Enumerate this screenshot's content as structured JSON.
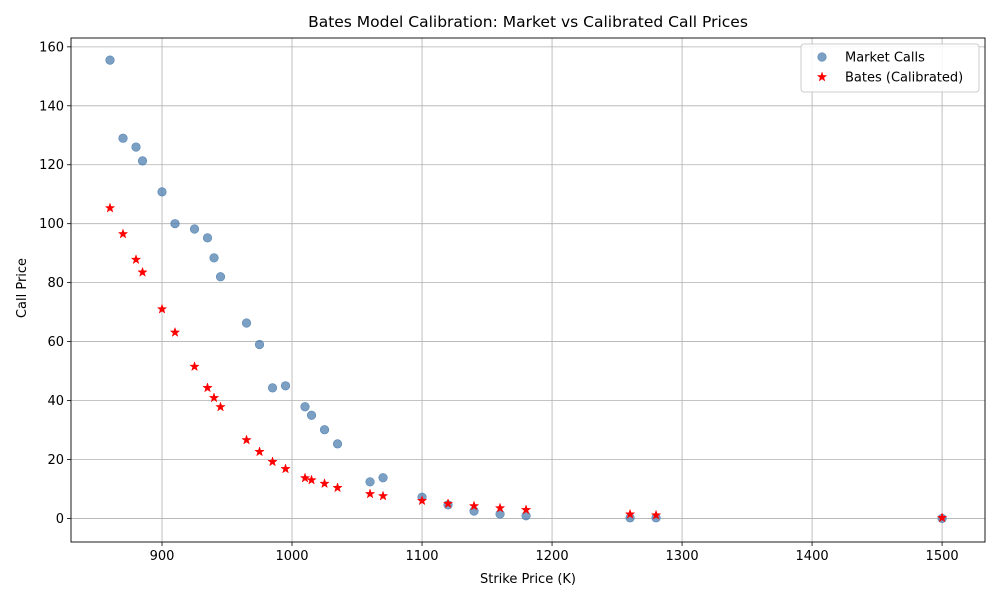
{
  "chart_data": {
    "type": "scatter",
    "title": "Bates Model Calibration: Market vs Calibrated Call Prices",
    "xlabel": "Strike Price (K)",
    "ylabel": "Call Price",
    "xlim": [
      830,
      1533
    ],
    "ylim": [
      -8,
      163
    ],
    "xticks": [
      900,
      1000,
      1100,
      1200,
      1300,
      1400,
      1500
    ],
    "yticks": [
      0,
      20,
      40,
      60,
      80,
      100,
      120,
      140,
      160
    ],
    "grid": true,
    "legend_position": "top-right",
    "series": [
      {
        "name": "Market Calls",
        "marker": "circle",
        "color": "#4477aa",
        "points": [
          [
            860,
            155.5
          ],
          [
            870,
            129
          ],
          [
            880,
            126
          ],
          [
            885,
            121.3
          ],
          [
            900,
            110.8
          ],
          [
            910,
            100
          ],
          [
            925,
            98.2
          ],
          [
            935,
            95.2
          ],
          [
            940,
            88.4
          ],
          [
            945,
            82
          ],
          [
            965,
            66.3
          ],
          [
            975,
            59
          ],
          [
            985,
            44.3
          ],
          [
            995,
            45
          ],
          [
            1010,
            37.9
          ],
          [
            1015,
            35
          ],
          [
            1025,
            30.1
          ],
          [
            1035,
            25.3
          ],
          [
            1060,
            12.4
          ],
          [
            1070,
            13.8
          ],
          [
            1100,
            7.2
          ],
          [
            1120,
            4.6
          ],
          [
            1140,
            2.5
          ],
          [
            1160,
            1.5
          ],
          [
            1180,
            0.9
          ],
          [
            1260,
            0.2
          ],
          [
            1280,
            0.2
          ],
          [
            1500,
            0
          ]
        ]
      },
      {
        "name": "Bates (Calibrated)",
        "marker": "star",
        "color": "#ff0000",
        "points": [
          [
            860,
            105.3
          ],
          [
            870,
            96.5
          ],
          [
            880,
            87.8
          ],
          [
            885,
            83.5
          ],
          [
            900,
            71
          ],
          [
            910,
            63.1
          ],
          [
            925,
            51.5
          ],
          [
            935,
            44.3
          ],
          [
            940,
            40.9
          ],
          [
            945,
            37.8
          ],
          [
            965,
            26.6
          ],
          [
            975,
            22.6
          ],
          [
            985,
            19.2
          ],
          [
            995,
            16.8
          ],
          [
            1010,
            13.7
          ],
          [
            1015,
            13
          ],
          [
            1025,
            11.8
          ],
          [
            1035,
            10.4
          ],
          [
            1060,
            8.3
          ],
          [
            1070,
            7.6
          ],
          [
            1100,
            6
          ],
          [
            1120,
            5
          ],
          [
            1140,
            4.2
          ],
          [
            1160,
            3.5
          ],
          [
            1180,
            2.9
          ],
          [
            1260,
            1.4
          ],
          [
            1280,
            1.1
          ],
          [
            1500,
            0.2
          ]
        ]
      }
    ]
  }
}
